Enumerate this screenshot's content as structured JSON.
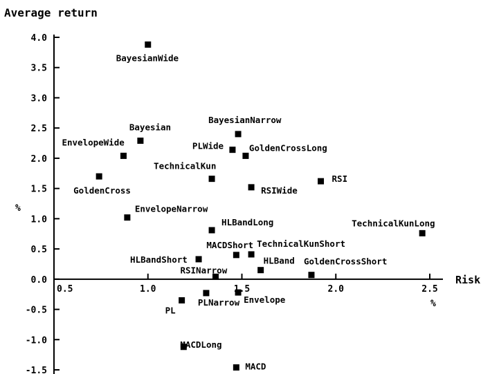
{
  "chart_data": {
    "type": "scatter",
    "title": "Average return",
    "xlabel": "Risk",
    "x_unit": "%",
    "y_unit": "%",
    "xlim": [
      0.5,
      2.5
    ],
    "ylim": [
      -1.5,
      4.0
    ],
    "x_ticks": [
      "0.5",
      "1.0",
      "1.5",
      "2.0",
      "2.5"
    ],
    "y_ticks": [
      "4.0",
      "3.5",
      "3.0",
      "2.5",
      "2.0",
      "1.5",
      "1.0",
      "0.5",
      "0.0",
      "-0.5",
      "-1.0",
      "-1.5"
    ],
    "grid": false,
    "points": [
      {
        "label": "BayesianWide",
        "x": 1.0,
        "y": 3.88
      },
      {
        "label": "BayesianNarrow",
        "x": 1.48,
        "y": 2.4
      },
      {
        "label": "Bayesian",
        "x": 0.96,
        "y": 2.29
      },
      {
        "label": "PLWide",
        "x": 1.45,
        "y": 2.14
      },
      {
        "label": "GoldenCrossLong",
        "x": 1.52,
        "y": 2.04
      },
      {
        "label": "EnvelopeWide",
        "x": 0.87,
        "y": 2.04
      },
      {
        "label": "GoldenCross",
        "x": 0.74,
        "y": 1.7
      },
      {
        "label": "TechnicalKun",
        "x": 1.34,
        "y": 1.66
      },
      {
        "label": "RSI",
        "x": 1.92,
        "y": 1.62
      },
      {
        "label": "RSIWide",
        "x": 1.55,
        "y": 1.52
      },
      {
        "label": "EnvelopeNarrow",
        "x": 0.89,
        "y": 1.02
      },
      {
        "label": "HLBandLong",
        "x": 1.34,
        "y": 0.81
      },
      {
        "label": "TechnicalKunLong",
        "x": 2.46,
        "y": 0.76
      },
      {
        "label": "MACDShort",
        "x": 1.47,
        "y": 0.4
      },
      {
        "label": "TechnicalKunShort",
        "x": 1.55,
        "y": 0.41
      },
      {
        "label": "HLBandShort",
        "x": 1.27,
        "y": 0.33
      },
      {
        "label": "HLBand",
        "x": 1.6,
        "y": 0.15
      },
      {
        "label": "GoldenCrossShort",
        "x": 1.87,
        "y": 0.07
      },
      {
        "label": "RSINarrow",
        "x": 1.36,
        "y": 0.04
      },
      {
        "label": "Envelope",
        "x": 1.48,
        "y": -0.22
      },
      {
        "label": "PLNarrow",
        "x": 1.31,
        "y": -0.23
      },
      {
        "label": "PL",
        "x": 1.18,
        "y": -0.35
      },
      {
        "label": "MACDLong",
        "x": 1.19,
        "y": -1.12
      },
      {
        "label": "MACD",
        "x": 1.47,
        "y": -1.46
      }
    ]
  }
}
